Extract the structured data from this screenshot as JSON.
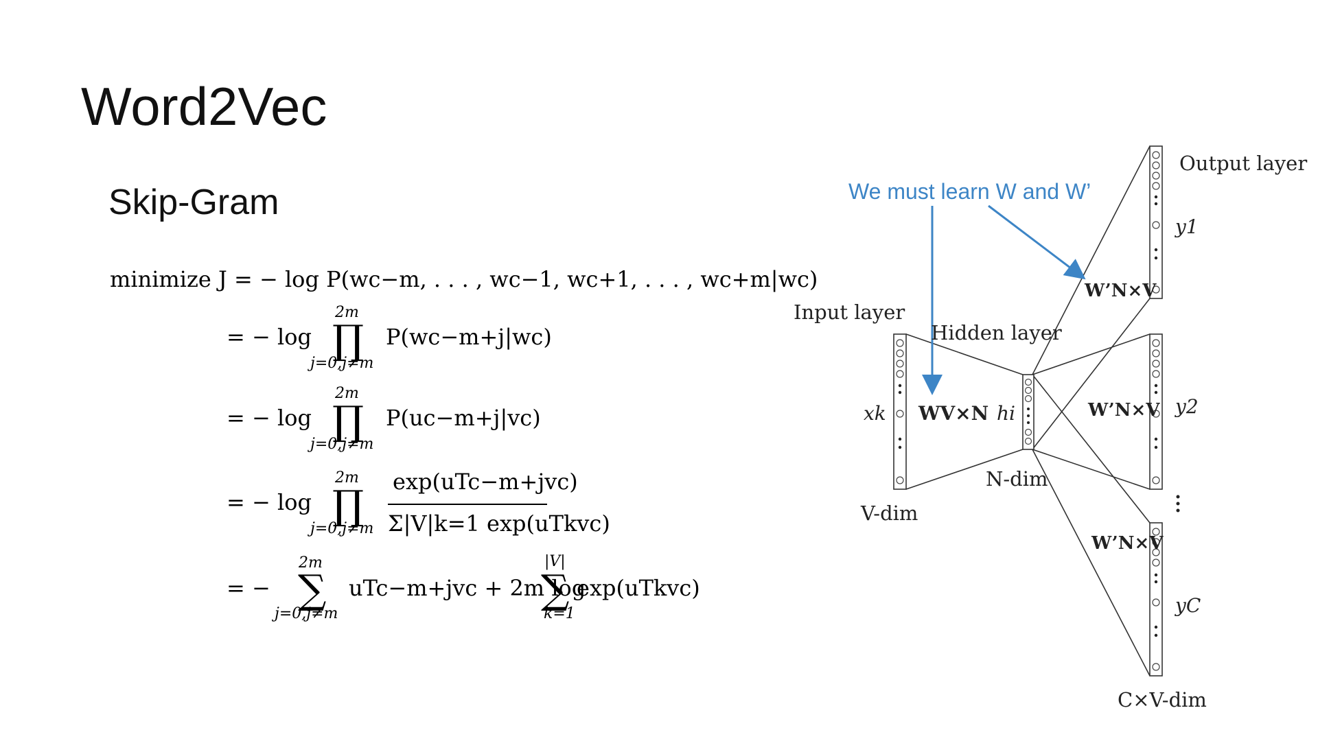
{
  "slide": {
    "title": "Word2Vec",
    "subtitle": "Skip-Gram"
  },
  "equations": {
    "line1_prefix": "minimize",
    "line1_body": "J = − log P(wc−m, . . . , wc−1, wc+1, . . . , wc+m|wc)",
    "eq_sign": "= − log",
    "prod_top": "2m",
    "prod_bottom": "j=0,j≠m",
    "line2_body": "P(wc−m+j|wc)",
    "line3_body": "P(uc−m+j|vc)",
    "line4_numerator": "exp(uTc−m+jvc)",
    "line4_denominator": "Σ|V|k=1 exp(uTkvc)",
    "line5_prefix": "= −",
    "line5_sum1_top": "2m",
    "line5_sum1_bottom": "j=0,j≠m",
    "line5_mid": "uTc−m+jvc + 2m log",
    "line5_sum2_top": "|V|",
    "line5_sum2_bottom": "k=1",
    "line5_end": "exp(uTkvc)"
  },
  "diagram": {
    "annotation": "We must learn W and W’",
    "annotation_color": "#3d85c6",
    "input_layer": "Input layer",
    "hidden_layer": "Hidden layer",
    "output_layer": "Output layer",
    "x_k": "xk",
    "w_matrix": "WV×N",
    "h_i": "hi",
    "w_prime_1": "W’N×V",
    "w_prime_2": "W’N×V",
    "w_prime_3": "W’N×V",
    "y_1": "y1",
    "y_2": "y2",
    "y_c": "yC",
    "v_dim": "V-dim",
    "n_dim": "N-dim",
    "cv_dim": "C×V-dim"
  }
}
